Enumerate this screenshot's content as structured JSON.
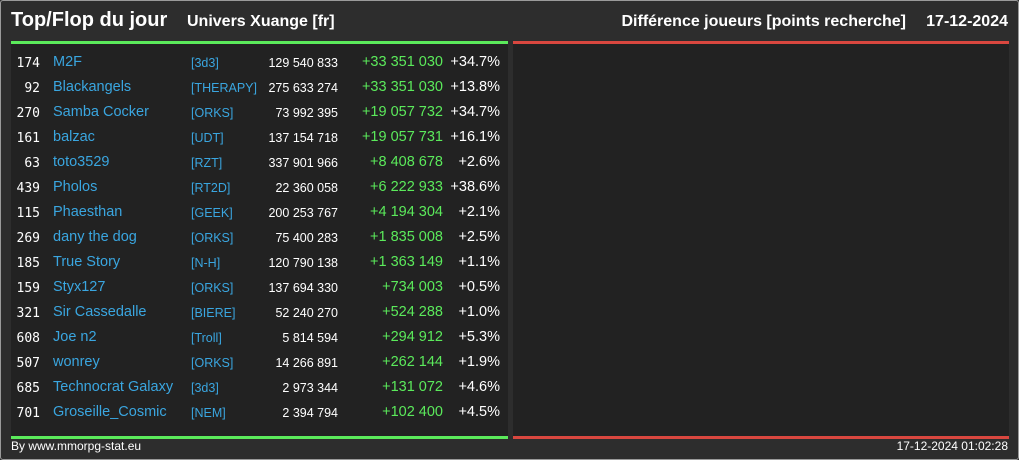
{
  "header": {
    "title": "Top/Flop du jour",
    "universe": "Univers Xuange [fr]",
    "metric": "Différence joueurs [points recherche]",
    "date": "17-12-2024"
  },
  "top": [
    {
      "rank": "174",
      "name": "M2F",
      "alliance": "[3d3]",
      "points": "129 540 833",
      "diff": "+33 351 030",
      "pct": "+34.7%"
    },
    {
      "rank": "92",
      "name": "Blackangels",
      "alliance": "[THERAPY]",
      "points": "275 633 274",
      "diff": "+33 351 030",
      "pct": "+13.8%"
    },
    {
      "rank": "270",
      "name": "Samba Cocker",
      "alliance": "[ORKS]",
      "points": "73 992 395",
      "diff": "+19 057 732",
      "pct": "+34.7%"
    },
    {
      "rank": "161",
      "name": "balzac",
      "alliance": "[UDT]",
      "points": "137 154 718",
      "diff": "+19 057 731",
      "pct": "+16.1%"
    },
    {
      "rank": "63",
      "name": "toto3529",
      "alliance": "[RZT]",
      "points": "337 901 966",
      "diff": "+8 408 678",
      "pct": "+2.6%"
    },
    {
      "rank": "439",
      "name": "Pholos",
      "alliance": "[RT2D]",
      "points": "22 360 058",
      "diff": "+6 222 933",
      "pct": "+38.6%"
    },
    {
      "rank": "115",
      "name": "Phaesthan",
      "alliance": "[GEEK]",
      "points": "200 253 767",
      "diff": "+4 194 304",
      "pct": "+2.1%"
    },
    {
      "rank": "269",
      "name": "dany the dog",
      "alliance": "[ORKS]",
      "points": "75 400 283",
      "diff": "+1 835 008",
      "pct": "+2.5%"
    },
    {
      "rank": "185",
      "name": "True Story",
      "alliance": "[N-H]",
      "points": "120 790 138",
      "diff": "+1 363 149",
      "pct": "+1.1%"
    },
    {
      "rank": "159",
      "name": "Styx127",
      "alliance": "[ORKS]",
      "points": "137 694 330",
      "diff": "+734 003",
      "pct": "+0.5%"
    },
    {
      "rank": "321",
      "name": "Sir Cassedalle",
      "alliance": "[BIERE]",
      "points": "52 240 270",
      "diff": "+524 288",
      "pct": "+1.0%"
    },
    {
      "rank": "608",
      "name": "Joe n2",
      "alliance": "[Troll]",
      "points": "5 814 594",
      "diff": "+294 912",
      "pct": "+5.3%"
    },
    {
      "rank": "507",
      "name": "wonrey",
      "alliance": "[ORKS]",
      "points": "14 266 891",
      "diff": "+262 144",
      "pct": "+1.9%"
    },
    {
      "rank": "685",
      "name": "Technocrat Galaxy",
      "alliance": "[3d3]",
      "points": "2 973 344",
      "diff": "+131 072",
      "pct": "+4.6%"
    },
    {
      "rank": "701",
      "name": "Groseille_Cosmic",
      "alliance": "[NEM]",
      "points": "2 394 794",
      "diff": "+102 400",
      "pct": "+4.5%"
    }
  ],
  "footer": {
    "source": "By www.mmorpg-stat.eu",
    "timestamp": "17-12-2024 01:02:28"
  },
  "colors": {
    "top_accent": "#5bea5b",
    "flop_accent": "#d9473f",
    "link": "#3aa6e0"
  }
}
